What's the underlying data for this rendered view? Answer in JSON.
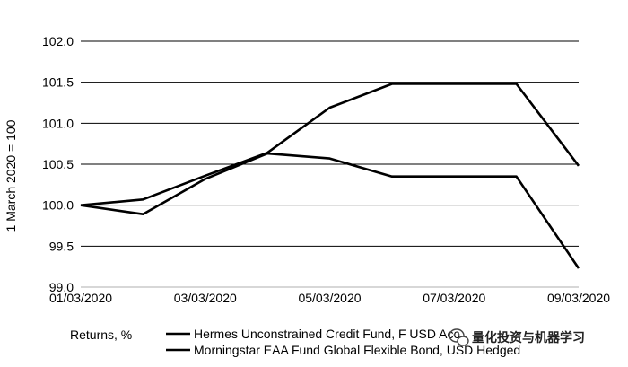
{
  "chart_data": {
    "type": "line",
    "title": "",
    "xlabel": "",
    "ylabel": "1 March 2020 = 100",
    "x": [
      "01/03/2020",
      "02/03/2020",
      "03/03/2020",
      "04/03/2020",
      "05/03/2020",
      "06/03/2020",
      "07/03/2020",
      "08/03/2020",
      "09/03/2020"
    ],
    "x_tick_labels": [
      "01/03/2020",
      "03/03/2020",
      "05/03/2020",
      "07/03/2020",
      "09/03/2020"
    ],
    "ylim": [
      99.0,
      102.0
    ],
    "y_tick_labels": [
      "102.0",
      "101.5",
      "101.0",
      "100.5",
      "100.0",
      "99.5",
      "99.0"
    ],
    "grid": "horizontal",
    "legend_placement": "bottom",
    "legend_prefix": "Returns,  %",
    "series": [
      {
        "name": "Hermes Unconstrained Credit Fund, F USD Acc",
        "values": [
          100.0,
          100.07,
          100.36,
          100.64,
          101.19,
          101.48,
          101.48,
          101.48,
          100.48
        ]
      },
      {
        "name": "Morningstar EAA Fund Global Flexible Bond, USD Hedged",
        "values": [
          100.0,
          99.89,
          100.32,
          100.63,
          100.57,
          100.35,
          100.35,
          100.35,
          99.23
        ]
      }
    ],
    "colors": {
      "line": "#000000",
      "grid": "#000000",
      "axis": "#bfbfbf"
    }
  },
  "watermark": {
    "text": "量化投资与机器学习",
    "icon": "wechat-icon"
  }
}
